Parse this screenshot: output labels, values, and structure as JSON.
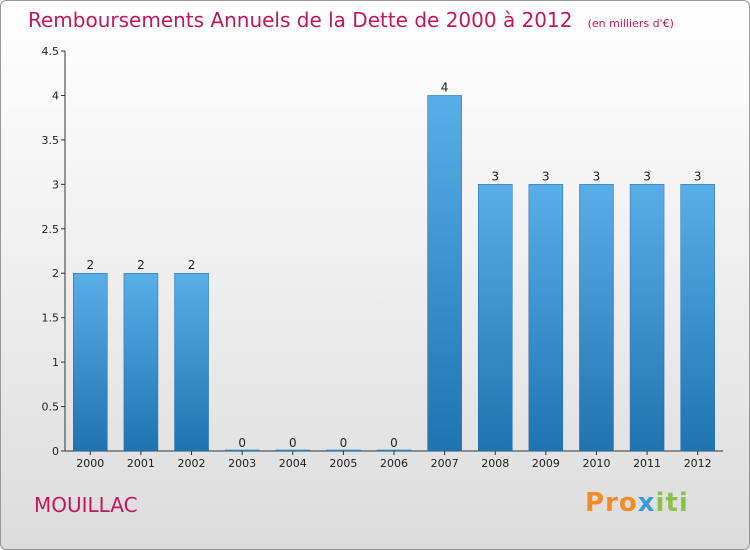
{
  "title": "Remboursements Annuels de la Dette de 2000 à 2012",
  "unit": "(en milliers d'€)",
  "town": "MOUILLAC",
  "logo": {
    "p1": "Pro",
    "p2": "x",
    "p3": "iti"
  },
  "colors": {
    "title": "#c2185b",
    "bar_top": "#5aaee8",
    "bar_bottom": "#1f73b0",
    "axis": "#333333"
  },
  "chart_data": {
    "type": "bar",
    "categories": [
      "2000",
      "2001",
      "2002",
      "2003",
      "2004",
      "2005",
      "2006",
      "2007",
      "2008",
      "2009",
      "2010",
      "2011",
      "2012"
    ],
    "values": [
      2,
      2,
      2,
      0,
      0,
      0,
      0,
      4,
      3,
      3,
      3,
      3,
      3
    ],
    "value_labels": [
      "2",
      "2",
      "2",
      "0",
      "0",
      "0",
      "0",
      "4",
      "3",
      "3",
      "3",
      "3",
      "3"
    ],
    "yticks": [
      0,
      0.5,
      1,
      1.5,
      2,
      2.5,
      3,
      3.5,
      4,
      4.5
    ],
    "ytick_labels": [
      "0",
      "0.5",
      "1",
      "1.5",
      "2",
      "2.5",
      "3",
      "3.5",
      "4",
      "4.5"
    ],
    "ylim": [
      0,
      4.5
    ],
    "grid": false,
    "title": "Remboursements Annuels de la Dette de 2000 à 2012",
    "xlabel": "",
    "ylabel": ""
  }
}
